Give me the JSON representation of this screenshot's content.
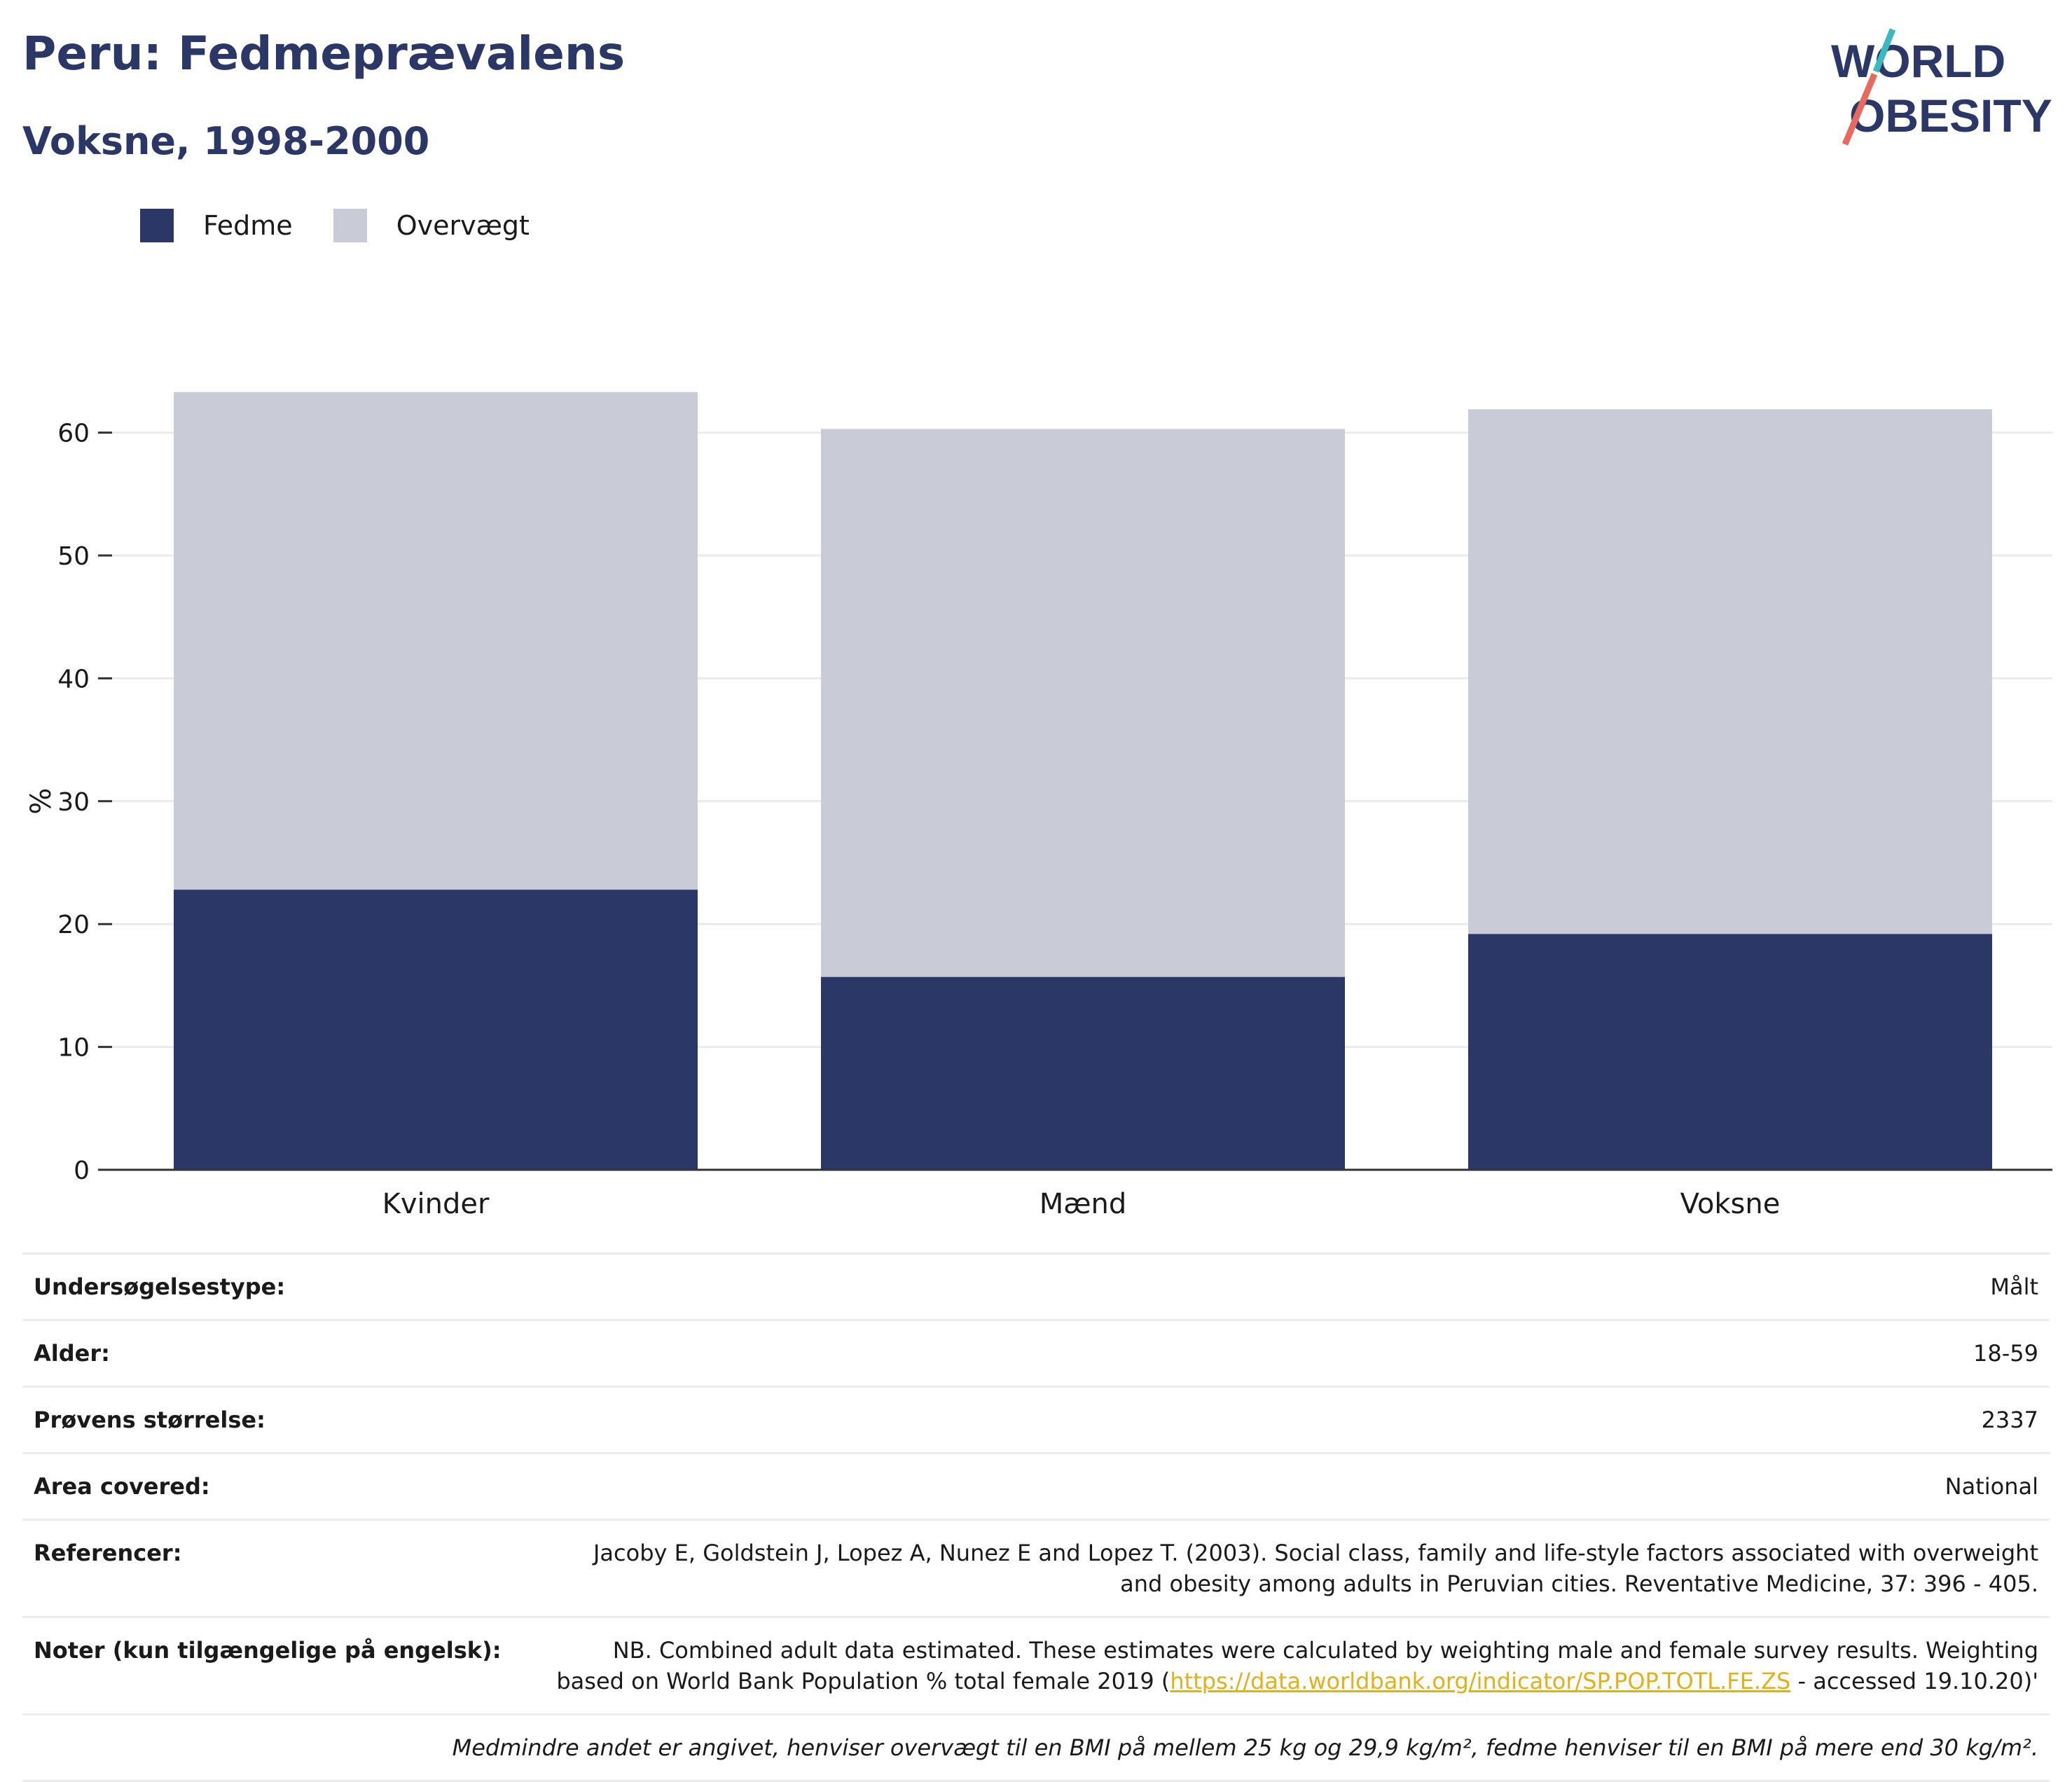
{
  "title": "Peru: Fedmeprævalens",
  "subtitle": "Voksne, 1998-2000",
  "logo": {
    "line1": "WORLD",
    "line2": "OBESITY",
    "colors": [
      "#2b3766",
      "#3ab9be",
      "#e86a5f"
    ]
  },
  "legend": [
    {
      "label": "Fedme",
      "color": "#2b3766"
    },
    {
      "label": "Overvægt",
      "color": "#c9cbd7"
    }
  ],
  "chart_data": {
    "type": "bar",
    "stacked": true,
    "categories": [
      "Kvinder",
      "Mænd",
      "Voksne"
    ],
    "series": [
      {
        "name": "Fedme",
        "color": "#2b3766",
        "values": [
          22.8,
          15.7,
          19.2
        ]
      },
      {
        "name": "Overvægt",
        "color": "#c9cbd7",
        "values": [
          40.5,
          44.6,
          42.7
        ]
      }
    ],
    "ylabel": "%",
    "ylim": [
      0,
      65
    ],
    "yticks": [
      0,
      10,
      20,
      30,
      40,
      50,
      60
    ],
    "grid": true,
    "legend_position": "top-left"
  },
  "info": {
    "rows": [
      {
        "key": "Undersøgelsestype:",
        "value": "Målt"
      },
      {
        "key": "Alder:",
        "value": "18-59"
      },
      {
        "key": "Prøvens størrelse:",
        "value": "2337"
      },
      {
        "key": "Area covered:",
        "value": "National"
      },
      {
        "key": "Referencer:",
        "value": "Jacoby E, Goldstein J, Lopez A, Nunez E and Lopez T. (2003). Social class, family and life-style factors associated with overweight and obesity among adults in Peruvian cities. Reventative Medicine, 37: 396 - 405."
      }
    ],
    "notes": {
      "key": "Noter (kun tilgængelige på engelsk):",
      "before": "NB. Combined adult data estimated. These estimates were calculated by weighting male and female survey results. Weighting based on World Bank Population % total female 2019 (",
      "link": "https://data.worldbank.org/indicator/SP.POP.TOTL.FE.ZS",
      "after": " - accessed 19.10.20)'"
    },
    "footnote": "Medmindre andet er angivet, henviser overvægt til en BMI på mellem 25 kg og 29,9 kg/m², fedme henviser til en BMI på mere end 30 kg/m²."
  }
}
